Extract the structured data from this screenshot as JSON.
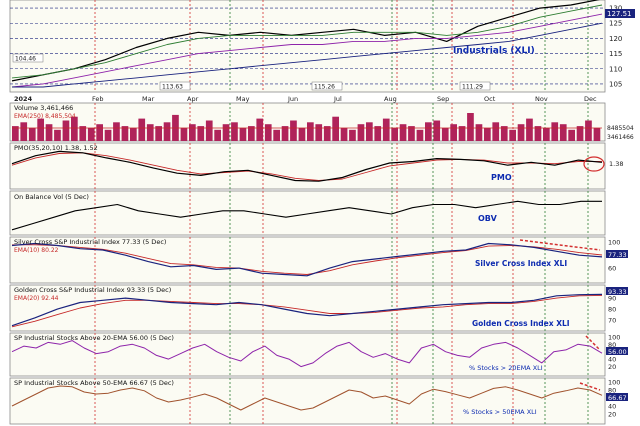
{
  "chart_data": {
    "type": "line",
    "x_months": [
      "2024",
      "Feb",
      "Mar",
      "Apr",
      "May",
      "Jun",
      "Jul",
      "Aug",
      "Sep",
      "Oct",
      "Nov",
      "Dec"
    ],
    "price_panel": {
      "annotation": "Industrials (XLI)",
      "value_badge": "127.51",
      "y_ticks": [
        "130",
        "125",
        "120",
        "115",
        "110",
        "105"
      ],
      "ylim": [
        103,
        132
      ],
      "point_labels": [
        "104.46",
        "113.63",
        "115.26",
        "111.29"
      ],
      "series": [
        {
          "values": [
            106,
            108,
            110,
            113,
            117,
            120,
            122,
            121,
            122,
            121,
            122,
            123,
            121,
            122,
            119,
            124,
            127,
            130,
            131,
            133
          ],
          "color": "#000000"
        },
        {
          "values": [
            107,
            108,
            110,
            112,
            115,
            118,
            120,
            121,
            121,
            121,
            121,
            122,
            122,
            122,
            121,
            122,
            124,
            127,
            129,
            131
          ],
          "color": "#2e7d32"
        },
        {
          "values": [
            104,
            105,
            107,
            109,
            111,
            113,
            115,
            116,
            117,
            118,
            118,
            119,
            119,
            120,
            120,
            121,
            122,
            124,
            126,
            128
          ],
          "color": "#8e24aa"
        },
        {
          "values": [
            104,
            104,
            105,
            106,
            107,
            108,
            109,
            110,
            111,
            112,
            113,
            114,
            115,
            116,
            117,
            118,
            119,
            121,
            123,
            125
          ],
          "color": "#1a237e"
        }
      ]
    },
    "volume_panel": {
      "title": "Volume 3,461,466",
      "ema_label": "EMA(250) 8,485,504",
      "right_labels": [
        "8485504",
        "3461466"
      ],
      "bars": [
        8,
        10,
        7,
        12,
        9,
        6,
        11,
        13,
        8,
        7,
        9,
        6,
        10,
        8,
        7,
        12,
        9,
        8,
        10,
        14,
        7,
        9,
        8,
        11,
        6,
        9,
        10,
        7,
        8,
        12,
        9,
        6,
        8,
        11,
        7,
        10,
        9,
        8,
        13,
        7,
        6,
        9,
        10,
        8,
        12,
        7,
        9,
        8,
        6,
        10,
        11,
        7,
        9,
        8,
        15,
        9,
        7,
        10,
        8,
        6,
        9,
        12,
        8,
        7,
        10,
        9,
        6,
        8,
        11,
        7
      ]
    },
    "pmo_panel": {
      "title": "PMO(35,20,10) 1.38, 1.52",
      "annotation": "PMO",
      "right_label": "1.38",
      "pmo": [
        1.2,
        2.3,
        2.9,
        2.7,
        2.0,
        1.4,
        0.6,
        -0.1,
        -0.4,
        0.1,
        0.3,
        -0.4,
        -1.1,
        -1.2,
        -0.7,
        0.4,
        1.3,
        1.5,
        1.9,
        1.8,
        1.6,
        1.0,
        1.4,
        1.0,
        1.7,
        1.4
      ],
      "signal": [
        1.0,
        2.0,
        2.6,
        2.7,
        2.3,
        1.7,
        1.0,
        0.3,
        -0.2,
        0.0,
        0.2,
        -0.2,
        -0.8,
        -1.1,
        -0.9,
        0.0,
        0.9,
        1.3,
        1.7,
        1.8,
        1.7,
        1.3,
        1.3,
        1.2,
        1.5,
        1.52
      ],
      "ylim": [
        -2,
        3.5
      ]
    },
    "obv_panel": {
      "title": "On Balance Vol (5 Dec)",
      "annotation": "OBV",
      "values": [
        1,
        3,
        5,
        7,
        8,
        9,
        7,
        6,
        5,
        6,
        7,
        7,
        6,
        5,
        6,
        7,
        8,
        7,
        6,
        8,
        9,
        9,
        8,
        9,
        10,
        9,
        9,
        10,
        10
      ],
      "ylim": [
        0,
        12
      ]
    },
    "silver_panel": {
      "title": "Silver Cross S&P Industrial Index 77.33 (5 Dec)",
      "ema_label": "EMA(10) 80.22",
      "annotation": "Silver Cross Index XLI",
      "right_label": "77.33",
      "y_ticks": [
        "100",
        "80",
        "60"
      ],
      "ylim": [
        40,
        105
      ],
      "index": [
        95,
        98,
        95,
        90,
        88,
        80,
        70,
        62,
        64,
        58,
        60,
        52,
        50,
        48,
        60,
        70,
        74,
        78,
        82,
        86,
        88,
        98,
        96,
        92,
        86,
        80,
        77.33
      ],
      "ema": [
        96,
        96,
        95,
        92,
        89,
        83,
        75,
        67,
        65,
        61,
        60,
        55,
        52,
        50,
        56,
        65,
        71,
        76,
        80,
        84,
        87,
        94,
        95,
        93,
        89,
        84,
        80.22
      ]
    },
    "golden_panel": {
      "title": "Golden Cross S&P Industrial Index 93.33 (5 Dec)",
      "ema_label": "EMA(20) 92.44",
      "annotation": "Golden Cross Index XLI",
      "right_label": "93.33",
      "y_ticks": [
        "90",
        "80",
        "70"
      ],
      "ylim": [
        62,
        100
      ],
      "index": [
        65,
        72,
        80,
        86,
        88,
        90,
        88,
        86,
        85,
        84,
        86,
        84,
        80,
        76,
        74,
        76,
        78,
        80,
        82,
        84,
        85,
        86,
        86,
        88,
        92,
        93,
        93.33
      ],
      "ema": [
        64,
        69,
        75,
        81,
        85,
        88,
        88,
        87,
        86,
        85,
        85,
        84,
        82,
        79,
        76,
        76,
        77,
        79,
        81,
        82,
        84,
        85,
        85,
        87,
        90,
        92,
        92.44
      ]
    },
    "pct20_panel": {
      "title": "SP Industrial Stocks Above 20-EMA 56.00 (5 Dec)",
      "annotation": "% Stocks > 20EMA XLI",
      "right_label": "56.00",
      "y_ticks": [
        "100",
        "80",
        "60",
        "40",
        "20"
      ],
      "ylim": [
        0,
        105
      ],
      "values": [
        60,
        75,
        70,
        85,
        80,
        90,
        70,
        55,
        60,
        75,
        80,
        70,
        50,
        40,
        55,
        70,
        80,
        60,
        45,
        35,
        60,
        75,
        50,
        40,
        20,
        30,
        55,
        75,
        85,
        60,
        45,
        55,
        40,
        30,
        70,
        80,
        60,
        50,
        45,
        70,
        80,
        85,
        70,
        50,
        30,
        60,
        65,
        80,
        75,
        56
      ]
    },
    "pct50_panel": {
      "title": "SP Industrial Stocks Above 50-EMA 66.67 (5 Dec)",
      "annotation": "% Stocks > 50EMA XLI",
      "right_label": "66.67",
      "y_ticks": [
        "100",
        "80",
        "60",
        "40",
        "20"
      ],
      "ylim": [
        0,
        105
      ],
      "values": [
        40,
        55,
        70,
        85,
        90,
        88,
        75,
        70,
        72,
        80,
        85,
        78,
        60,
        50,
        55,
        62,
        70,
        60,
        45,
        30,
        45,
        60,
        50,
        40,
        30,
        35,
        50,
        65,
        80,
        75,
        60,
        65,
        55,
        45,
        70,
        82,
        76,
        68,
        60,
        72,
        84,
        88,
        80,
        70,
        60,
        72,
        78,
        85,
        80,
        66.67
      ]
    },
    "colors": {
      "panel_bg": "#fbfbf3",
      "grid": "#b9b9b9",
      "red_vline": "#d32f2f",
      "green_vline": "#2e7d32",
      "dashed_hline": "#1a237e",
      "volume_bar": "#b0235a",
      "silver_line": "#1a237e",
      "ema_line": "#c62828",
      "pct20_line": "#8e24aa",
      "pct50_line": "#a0522d",
      "label_blue": "#0d2bb0"
    }
  }
}
